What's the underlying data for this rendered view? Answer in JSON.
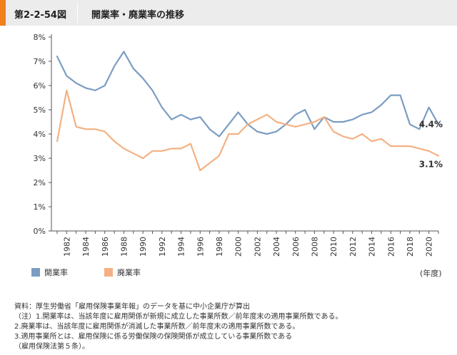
{
  "header": {
    "figure_label": "第2-2-54図",
    "title": "開業率・廃業率の推移"
  },
  "chart_data": {
    "type": "line",
    "title": "開業率・廃業率の推移",
    "xlabel": "(年度)",
    "ylabel": "",
    "ylim": [
      0,
      8
    ],
    "y_ticks": [
      0,
      1,
      2,
      3,
      4,
      5,
      6,
      7,
      8
    ],
    "y_tick_labels": [
      "0%",
      "1%",
      "2%",
      "3%",
      "4%",
      "5%",
      "6%",
      "7%",
      "8%"
    ],
    "x": [
      1981,
      1982,
      1983,
      1984,
      1985,
      1986,
      1987,
      1988,
      1989,
      1990,
      1991,
      1992,
      1993,
      1994,
      1995,
      1996,
      1997,
      1998,
      1999,
      2000,
      2001,
      2002,
      2003,
      2004,
      2005,
      2006,
      2007,
      2008,
      2009,
      2010,
      2011,
      2012,
      2013,
      2014,
      2015,
      2016,
      2017,
      2018,
      2019,
      2020,
      2021
    ],
    "x_tick_labels": [
      "1982",
      "1984",
      "1986",
      "1988",
      "1990",
      "1992",
      "1994",
      "1996",
      "1998",
      "2000",
      "2002",
      "2004",
      "2006",
      "2008",
      "2010",
      "2012",
      "2014",
      "2016",
      "2018",
      "2020"
    ],
    "series": [
      {
        "name": "開業率",
        "color": "#7b9dc3",
        "values": [
          7.2,
          6.4,
          6.1,
          5.9,
          5.8,
          6.0,
          6.8,
          7.4,
          6.7,
          6.3,
          5.8,
          5.1,
          4.6,
          4.8,
          4.6,
          4.7,
          4.2,
          3.9,
          4.4,
          4.9,
          4.4,
          4.1,
          4.0,
          4.1,
          4.4,
          4.8,
          5.0,
          4.2,
          4.7,
          4.5,
          4.5,
          4.6,
          4.8,
          4.9,
          5.2,
          5.6,
          5.6,
          4.4,
          4.2,
          5.1,
          4.4
        ],
        "end_label": "4.4%"
      },
      {
        "name": "廃業率",
        "color": "#f4b183",
        "values": [
          3.7,
          5.8,
          4.3,
          4.2,
          4.2,
          4.1,
          3.7,
          3.4,
          3.2,
          3.0,
          3.3,
          3.3,
          3.4,
          3.4,
          3.6,
          2.5,
          2.8,
          3.1,
          4.0,
          4.0,
          4.4,
          4.6,
          4.8,
          4.5,
          4.4,
          4.3,
          4.4,
          4.5,
          4.7,
          4.1,
          3.9,
          3.8,
          4.0,
          3.7,
          3.8,
          3.5,
          3.5,
          3.5,
          3.4,
          3.3,
          3.1
        ],
        "end_label": "3.1%"
      }
    ]
  },
  "notes": [
    "資料：厚生労働省「雇用保険事業年報」のデータを基に中小企業庁が算出",
    "（注）1.開業率は、当該年度に雇用関係が新規に成立した事業所数／前年度末の適用事業所数である。",
    "2.廃業率は、当該年度に雇用関係が消滅した事業所数／前年度末の適用事業所数である。",
    "3.適用事業所とは、雇用保険に係る労働保険の保険関係が成立している事業所数である",
    "（雇用保険法第５条）。"
  ]
}
